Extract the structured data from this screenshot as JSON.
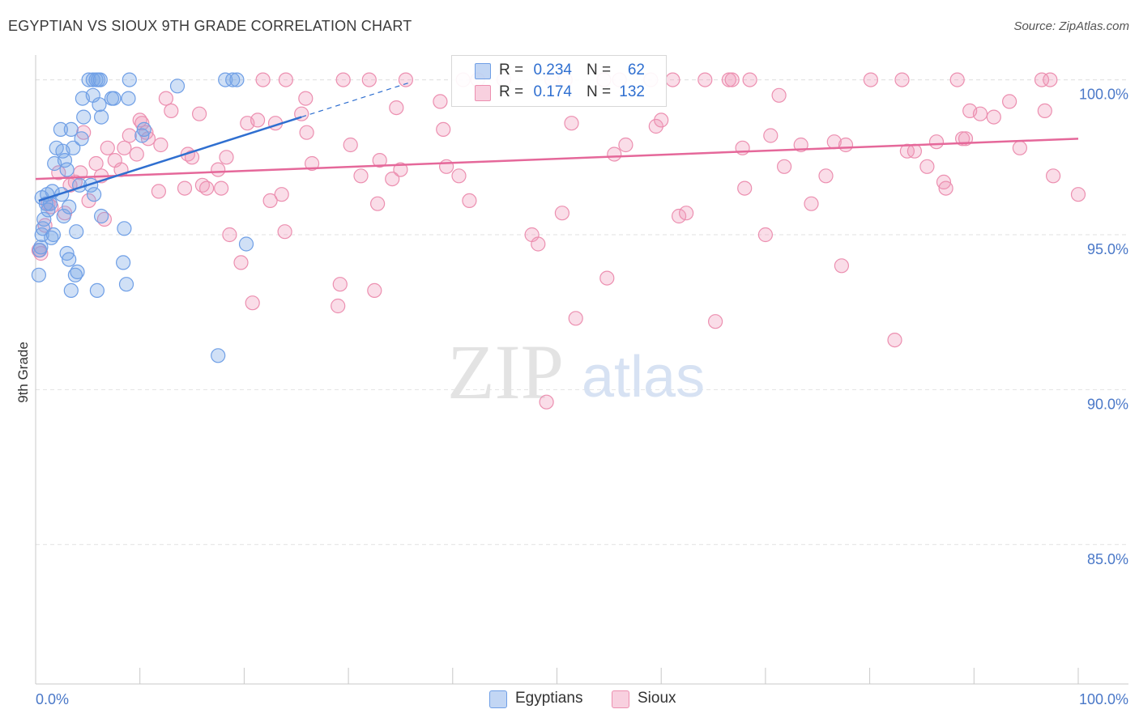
{
  "header": {
    "title": "EGYPTIAN VS SIOUX 9TH GRADE CORRELATION CHART",
    "source": "Source: ZipAtlas.com"
  },
  "watermark": {
    "zip": "ZIP",
    "atlas": "atlas"
  },
  "colors": {
    "blue": "#6f9fe6",
    "blue_fill": "rgba(120,165,230,0.35)",
    "blue_line": "#2f6fd0",
    "pink": "#ec8fb0",
    "pink_fill": "rgba(240,150,185,0.32)",
    "pink_line": "#e5689a",
    "axis_text": "#4a78c8",
    "grid": "#e2e2e2"
  },
  "legend": {
    "items": [
      {
        "series": "Egyptians",
        "r_label": "R =",
        "r_value": "0.234",
        "n_label": "N =",
        "n_value": "62"
      },
      {
        "series": "Sioux",
        "r_label": "R =",
        "r_value": "0.174",
        "n_label": "N =",
        "n_value": "132"
      }
    ]
  },
  "chart_data": {
    "type": "scatter",
    "title": "EGYPTIAN VS SIOUX 9TH GRADE CORRELATION CHART",
    "xlabel": "",
    "ylabel": "9th Grade",
    "xlim": [
      0,
      100
    ],
    "ylim": [
      80.5,
      100.8
    ],
    "x_tick_labels": [
      "0.0%",
      "100.0%"
    ],
    "y_ticks": [
      85,
      90,
      95,
      100
    ],
    "y_tick_labels": [
      "85.0%",
      "90.0%",
      "95.0%",
      "100.0%"
    ],
    "grid": true,
    "legend_position": "top-center",
    "series": [
      {
        "name": "Egyptians",
        "color": "blue",
        "trend": {
          "x": [
            0.3,
            25.5
          ],
          "y": [
            96.1,
            98.8
          ],
          "dash_to": [
            36.0,
            100.0
          ]
        },
        "points": [
          [
            0.4,
            94.5
          ],
          [
            0.5,
            94.6
          ],
          [
            0.6,
            95.0
          ],
          [
            0.7,
            95.2
          ],
          [
            0.8,
            95.5
          ],
          [
            1.0,
            96.0
          ],
          [
            0.6,
            96.2
          ],
          [
            1.2,
            95.8
          ],
          [
            1.4,
            96.0
          ],
          [
            1.5,
            94.9
          ],
          [
            1.7,
            95.0
          ],
          [
            1.6,
            96.4
          ],
          [
            1.8,
            97.3
          ],
          [
            2.0,
            97.8
          ],
          [
            2.4,
            98.4
          ],
          [
            2.6,
            97.7
          ],
          [
            2.8,
            97.4
          ],
          [
            3.0,
            97.1
          ],
          [
            2.5,
            96.3
          ],
          [
            2.7,
            95.6
          ],
          [
            3.2,
            95.9
          ],
          [
            3.0,
            94.4
          ],
          [
            3.2,
            94.2
          ],
          [
            3.4,
            98.4
          ],
          [
            3.6,
            97.8
          ],
          [
            3.4,
            93.2
          ],
          [
            3.8,
            93.7
          ],
          [
            3.9,
            95.1
          ],
          [
            4.0,
            93.8
          ],
          [
            4.2,
            96.6
          ],
          [
            4.4,
            98.1
          ],
          [
            4.5,
            99.4
          ],
          [
            4.6,
            98.8
          ],
          [
            5.3,
            96.6
          ],
          [
            5.6,
            96.3
          ],
          [
            5.1,
            100.0
          ],
          [
            5.5,
            100.0
          ],
          [
            5.8,
            100.0
          ],
          [
            5.9,
            93.2
          ],
          [
            6.0,
            100.0
          ],
          [
            5.5,
            99.5
          ],
          [
            6.1,
            99.2
          ],
          [
            6.2,
            100.0
          ],
          [
            6.3,
            98.8
          ],
          [
            6.3,
            95.6
          ],
          [
            7.3,
            99.4
          ],
          [
            7.5,
            99.4
          ],
          [
            8.4,
            94.1
          ],
          [
            8.5,
            95.2
          ],
          [
            8.7,
            93.4
          ],
          [
            8.9,
            99.4
          ],
          [
            9.0,
            100.0
          ],
          [
            10.2,
            98.2
          ],
          [
            10.4,
            98.4
          ],
          [
            13.6,
            99.8
          ],
          [
            18.2,
            100.0
          ],
          [
            18.9,
            100.0
          ],
          [
            19.3,
            100.0
          ],
          [
            17.5,
            91.1
          ],
          [
            20.2,
            94.7
          ],
          [
            0.3,
            93.7
          ],
          [
            1.1,
            96.3
          ]
        ]
      },
      {
        "name": "Sioux",
        "color": "pink",
        "trend": {
          "x": [
            0.0,
            100.0
          ],
          "y": [
            96.8,
            98.1
          ]
        },
        "points": [
          [
            0.3,
            94.5
          ],
          [
            0.5,
            94.4
          ],
          [
            0.9,
            95.3
          ],
          [
            1.2,
            96.0
          ],
          [
            1.5,
            95.9
          ],
          [
            2.2,
            97.0
          ],
          [
            2.8,
            95.7
          ],
          [
            3.3,
            96.6
          ],
          [
            3.8,
            96.7
          ],
          [
            4.3,
            97.0
          ],
          [
            4.6,
            98.3
          ],
          [
            5.1,
            96.1
          ],
          [
            5.8,
            97.3
          ],
          [
            6.3,
            96.9
          ],
          [
            6.6,
            95.5
          ],
          [
            6.9,
            97.8
          ],
          [
            7.6,
            97.4
          ],
          [
            8.2,
            97.1
          ],
          [
            8.5,
            97.8
          ],
          [
            9.0,
            98.2
          ],
          [
            9.7,
            97.6
          ],
          [
            10.0,
            98.7
          ],
          [
            10.2,
            98.6
          ],
          [
            10.6,
            98.3
          ],
          [
            10.8,
            98.1
          ],
          [
            11.8,
            96.4
          ],
          [
            12.0,
            97.9
          ],
          [
            12.5,
            99.4
          ],
          [
            13.0,
            99.0
          ],
          [
            14.3,
            96.5
          ],
          [
            14.6,
            97.6
          ],
          [
            15.0,
            97.5
          ],
          [
            15.7,
            98.9
          ],
          [
            16.0,
            96.6
          ],
          [
            16.4,
            96.5
          ],
          [
            17.5,
            97.1
          ],
          [
            17.8,
            96.5
          ],
          [
            18.3,
            97.5
          ],
          [
            18.6,
            95.0
          ],
          [
            19.7,
            94.1
          ],
          [
            20.3,
            98.6
          ],
          [
            20.8,
            92.8
          ],
          [
            21.3,
            98.7
          ],
          [
            21.8,
            100.0
          ],
          [
            22.5,
            96.1
          ],
          [
            23.0,
            98.6
          ],
          [
            23.6,
            96.3
          ],
          [
            23.9,
            95.1
          ],
          [
            24.0,
            100.0
          ],
          [
            25.5,
            98.9
          ],
          [
            25.9,
            99.4
          ],
          [
            26.0,
            98.3
          ],
          [
            26.5,
            97.3
          ],
          [
            29.0,
            92.7
          ],
          [
            29.2,
            93.4
          ],
          [
            29.5,
            100.0
          ],
          [
            30.2,
            97.9
          ],
          [
            31.2,
            96.9
          ],
          [
            32.0,
            100.0
          ],
          [
            32.5,
            93.2
          ],
          [
            32.8,
            96.0
          ],
          [
            33.0,
            97.4
          ],
          [
            34.2,
            96.8
          ],
          [
            34.6,
            99.1
          ],
          [
            35.0,
            97.1
          ],
          [
            35.5,
            100.0
          ],
          [
            38.8,
            99.3
          ],
          [
            39.1,
            98.4
          ],
          [
            39.4,
            97.2
          ],
          [
            40.6,
            96.9
          ],
          [
            41.0,
            100.0
          ],
          [
            41.6,
            96.1
          ],
          [
            42.4,
            100.0
          ],
          [
            44.9,
            100.0
          ],
          [
            47.6,
            95.0
          ],
          [
            48.2,
            94.7
          ],
          [
            49.0,
            89.6
          ],
          [
            49.5,
            100.0
          ],
          [
            50.5,
            95.7
          ],
          [
            50.8,
            100.0
          ],
          [
            51.4,
            98.6
          ],
          [
            51.8,
            92.3
          ],
          [
            54.5,
            100.0
          ],
          [
            54.8,
            93.6
          ],
          [
            55.5,
            97.6
          ],
          [
            56.0,
            100.0
          ],
          [
            56.6,
            97.9
          ],
          [
            59.0,
            100.0
          ],
          [
            59.5,
            98.5
          ],
          [
            60.0,
            98.7
          ],
          [
            61.1,
            100.0
          ],
          [
            61.7,
            95.6
          ],
          [
            62.4,
            95.7
          ],
          [
            64.2,
            100.0
          ],
          [
            65.2,
            92.2
          ],
          [
            66.5,
            100.0
          ],
          [
            66.8,
            100.0
          ],
          [
            67.8,
            97.8
          ],
          [
            68.0,
            96.5
          ],
          [
            68.5,
            100.0
          ],
          [
            70.0,
            95.0
          ],
          [
            70.5,
            98.2
          ],
          [
            71.3,
            99.5
          ],
          [
            71.8,
            97.2
          ],
          [
            73.4,
            97.9
          ],
          [
            74.4,
            96.0
          ],
          [
            75.8,
            96.9
          ],
          [
            76.6,
            98.0
          ],
          [
            77.3,
            94.0
          ],
          [
            77.7,
            97.9
          ],
          [
            80.1,
            100.0
          ],
          [
            82.4,
            91.6
          ],
          [
            83.1,
            100.0
          ],
          [
            83.6,
            97.7
          ],
          [
            84.3,
            97.7
          ],
          [
            85.5,
            97.2
          ],
          [
            86.4,
            98.0
          ],
          [
            87.1,
            96.7
          ],
          [
            87.3,
            96.5
          ],
          [
            88.4,
            100.0
          ],
          [
            88.9,
            98.1
          ],
          [
            89.2,
            98.1
          ],
          [
            89.6,
            99.0
          ],
          [
            90.6,
            98.9
          ],
          [
            91.9,
            98.8
          ],
          [
            93.4,
            99.3
          ],
          [
            94.4,
            97.8
          ],
          [
            96.5,
            100.0
          ],
          [
            96.8,
            99.0
          ],
          [
            97.3,
            100.0
          ],
          [
            97.6,
            96.9
          ],
          [
            100.0,
            96.3
          ]
        ]
      }
    ]
  }
}
